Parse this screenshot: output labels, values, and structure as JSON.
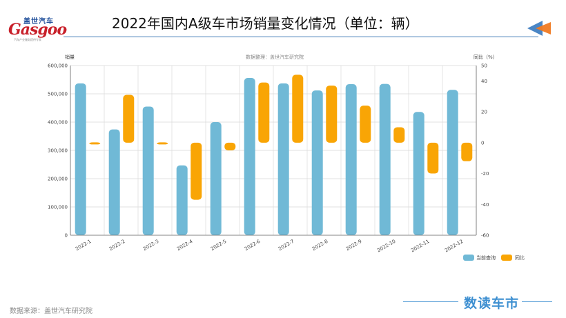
{
  "header": {
    "logo_cn": "盖世汽车",
    "logo_en": "Gasgoo",
    "logo_tag": "汽车产业服务提供专家",
    "title": "2022年国内A级车市场销量变化情况（单位：辆）"
  },
  "footer": {
    "source": "数据来源：盖世汽车研究院",
    "brand": "数读车市"
  },
  "colors": {
    "sales": "#70b9d6",
    "yoy": "#f9a505",
    "rule": "#3a78b4",
    "brand": "#3d8fd1"
  },
  "chart_data": {
    "type": "bar",
    "subtitle": "数据整理：盖世汽车研究院",
    "ylabel": "销量",
    "y2label": "同比（%）",
    "categories": [
      "2022-1",
      "2022-2",
      "2022-3",
      "2022-4",
      "2022-5",
      "2022-6",
      "2022-7",
      "2022-8",
      "2022-9",
      "2022-10",
      "2022-11",
      "2022-12"
    ],
    "ylim": [
      0,
      600000
    ],
    "yticks": [
      "0",
      "100,000",
      "200,000",
      "300,000",
      "400,000",
      "500,000",
      "600,000"
    ],
    "y2lim": [
      -60,
      50
    ],
    "y2ticks": [
      "-60",
      "-40",
      "-20",
      "0",
      "20",
      "40",
      "50"
    ],
    "series": [
      {
        "name": "当前查询",
        "axis": "left",
        "style": "column",
        "values": [
          537000,
          374000,
          455000,
          247000,
          400000,
          556000,
          537000,
          512000,
          534000,
          535000,
          436000,
          514000
        ]
      },
      {
        "name": "同比",
        "axis": "right",
        "style": "floating",
        "values": [
          [
            -1,
            0
          ],
          [
            0,
            31
          ],
          [
            -1,
            0
          ],
          [
            -37,
            0
          ],
          [
            -5,
            0
          ],
          [
            0,
            39
          ],
          [
            0,
            44
          ],
          [
            0,
            37
          ],
          [
            0,
            24
          ],
          [
            0,
            10
          ],
          [
            -20,
            0
          ],
          [
            -12,
            0
          ]
        ]
      }
    ],
    "grid": true,
    "legend": "bottom-right"
  }
}
